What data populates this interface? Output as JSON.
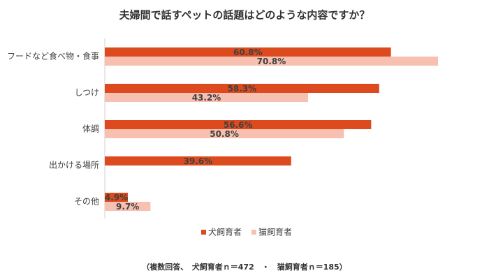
{
  "chart_data": {
    "type": "barh",
    "title": "夫婦間で話すペットの話題はどのような内容ですか？",
    "categories": [
      "フードなど食べ物・食事",
      "しつけ",
      "体調",
      "出かける場所",
      "その他"
    ],
    "series": [
      {
        "name": "犬飼育者",
        "color": "#dc4a1e",
        "values": [
          60.8,
          58.3,
          56.6,
          39.6,
          4.9
        ],
        "value_labels": [
          "60.8%",
          "58.3%",
          "56.6%",
          "39.6%",
          "4.9%"
        ]
      },
      {
        "name": "猫飼育者",
        "color": "#f7c0b0",
        "values": [
          70.8,
          43.2,
          50.8,
          null,
          9.7
        ],
        "value_labels": [
          "70.8%",
          "43.2%",
          "50.8%",
          null,
          "9.7%"
        ]
      }
    ],
    "note": "（複数回答、　犬飼育者ｎ＝472　・　猫飼育者ｎ＝185）"
  }
}
